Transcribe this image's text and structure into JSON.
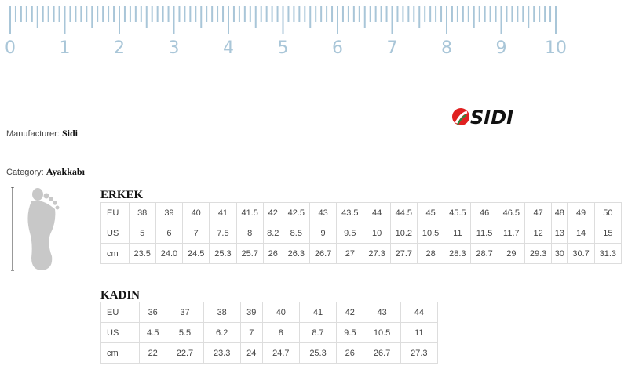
{
  "ruler": {
    "labels": [
      "0",
      "1",
      "2",
      "3",
      "4",
      "5",
      "6",
      "7",
      "8",
      "9",
      "10"
    ],
    "color": "#a9c6d8"
  },
  "manufacturer": {
    "label": "Manufacturer:",
    "value": "Sidi"
  },
  "category": {
    "label": "Category:",
    "value": "Ayakkabı"
  },
  "logo": {
    "text": "SIDI",
    "accent": "#e02020"
  },
  "men": {
    "title": "ERKEK",
    "rows": [
      [
        "EU",
        "38",
        "39",
        "40",
        "41",
        "41.5",
        "42",
        "42.5",
        "43",
        "43.5",
        "44",
        "44.5",
        "45",
        "45.5",
        "46",
        "46.5",
        "47",
        "48",
        "49",
        "50"
      ],
      [
        "US",
        "5",
        "6",
        "7",
        "7.5",
        "8",
        "8.2",
        "8.5",
        "9",
        "9.5",
        "10",
        "10.2",
        "10.5",
        "11",
        "11.5",
        "11.7",
        "12",
        "13",
        "14",
        "15"
      ],
      [
        "cm",
        "23.5",
        "24.0",
        "24.5",
        "25.3",
        "25.7",
        "26",
        "26.3",
        "26.7",
        "27",
        "27.3",
        "27.7",
        "28",
        "28.3",
        "28.7",
        "29",
        "29.3",
        "30",
        "30.7",
        "31.3"
      ]
    ]
  },
  "women": {
    "title": "KADIN",
    "rows": [
      [
        "EU",
        "36",
        "37",
        "38",
        "39",
        "40",
        "41",
        "42",
        "43",
        "44"
      ],
      [
        "US",
        "4.5",
        "5.5",
        "6.2",
        "7",
        "8",
        "8.7",
        "9.5",
        "10.5",
        "11"
      ],
      [
        "cm",
        "22",
        "22.7",
        "23.3",
        "24",
        "24.7",
        "25.3",
        "26",
        "26.7",
        "27.3"
      ]
    ]
  }
}
